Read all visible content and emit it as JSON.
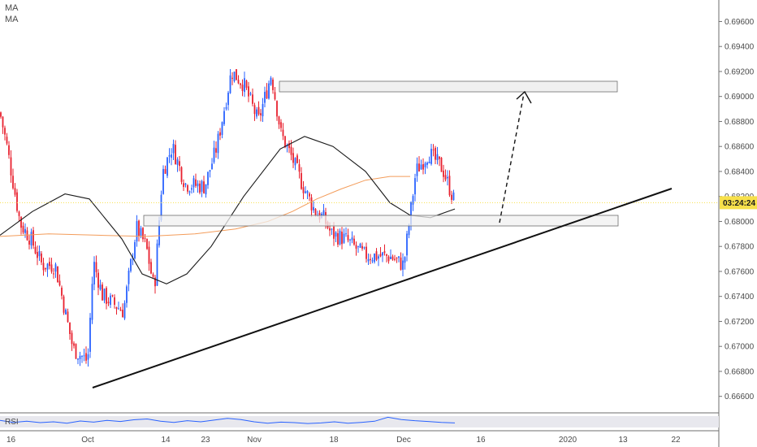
{
  "legend": {
    "ma_label_1": "MA",
    "ma_label_2": "MA"
  },
  "rsi_label": "RSI",
  "current_price_label": "03:24:24",
  "colors": {
    "up": "#2962ff",
    "down": "#e8202e",
    "ma_fast": "#1a1a1a",
    "ma_slow": "#f39c5a",
    "price_line": "#f7e04b",
    "badge": "#f7e04b",
    "rsi": "#2962ff",
    "zone_fill": "#f0f0f0",
    "zone_stroke": "#6e6e6e"
  },
  "chart_data": {
    "type": "candlestick",
    "y_ticks": [
      "0.69600",
      "0.69400",
      "0.69200",
      "0.69000",
      "0.68800",
      "0.68600",
      "0.68400",
      "0.68200",
      "0.68000",
      "0.67800",
      "0.67600",
      "0.67400",
      "0.67200",
      "0.67000",
      "0.66800",
      "0.66600"
    ],
    "x_ticks": [
      "16",
      "Oct",
      "14",
      "23",
      "Nov",
      "18",
      "Dec",
      "16",
      "2020",
      "13",
      "22"
    ],
    "current_price": 0.6815,
    "ylim": [
      0.6652,
      0.6972
    ],
    "anchors": [
      {
        "x": "16",
        "y": 0.6887
      },
      {
        "x": "16",
        "y": 0.6862
      },
      {
        "x": "16",
        "y": 0.6798
      },
      {
        "x": "16",
        "y": 0.6786
      },
      {
        "x": "Oct",
        "y": 0.6765
      },
      {
        "x": "Oct",
        "y": 0.6765
      },
      {
        "x": "Oct",
        "y": 0.6698
      },
      {
        "x": "Oct",
        "y": 0.6688
      },
      {
        "x": "Oct",
        "y": 0.6768
      },
      {
        "x": "Oct",
        "y": 0.6741
      },
      {
        "x": "14",
        "y": 0.6728
      },
      {
        "x": "14",
        "y": 0.6795
      },
      {
        "x": "14",
        "y": 0.678
      },
      {
        "x": "14",
        "y": 0.6745
      },
      {
        "x": "14",
        "y": 0.6839
      },
      {
        "x": "23",
        "y": 0.686
      },
      {
        "x": "23",
        "y": 0.683
      },
      {
        "x": "23",
        "y": 0.6828
      },
      {
        "x": "Nov",
        "y": 0.686
      },
      {
        "x": "Nov",
        "y": 0.692
      },
      {
        "x": "Nov",
        "y": 0.691
      },
      {
        "x": "Nov",
        "y": 0.688
      },
      {
        "x": "Nov",
        "y": 0.6918
      },
      {
        "x": "Nov",
        "y": 0.687
      },
      {
        "x": "Nov",
        "y": 0.685
      },
      {
        "x": "18",
        "y": 0.683
      },
      {
        "x": "18",
        "y": 0.6808
      },
      {
        "x": "18",
        "y": 0.6803
      },
      {
        "x": "18",
        "y": 0.679
      },
      {
        "x": "18",
        "y": 0.6786
      },
      {
        "x": "Dec",
        "y": 0.6773
      },
      {
        "x": "Dec",
        "y": 0.6772
      },
      {
        "x": "Dec",
        "y": 0.6765
      },
      {
        "x": "Dec",
        "y": 0.684
      },
      {
        "x": "Dec",
        "y": 0.6855
      },
      {
        "x": "Dec",
        "y": 0.6842
      },
      {
        "x": "Dec",
        "y": 0.6815
      }
    ],
    "ma_fast": [
      0.6789,
      0.6808,
      0.6822,
      0.6818,
      0.6786,
      0.6758,
      0.675,
      0.6758,
      0.678,
      0.682,
      0.6858,
      0.6868,
      0.686,
      0.684,
      0.6815,
      0.6805,
      0.6803,
      0.681
    ],
    "ma_slow": [
      0.6788,
      0.679,
      0.6789,
      0.6788,
      0.679,
      0.6794,
      0.68,
      0.6808,
      0.6818,
      0.6826,
      0.6833,
      0.6836,
      0.6836
    ]
  },
  "rsi_series": [
    55,
    48,
    52,
    47,
    50,
    45,
    53,
    49,
    55,
    51,
    57,
    60,
    52,
    48,
    54,
    50,
    56,
    62,
    58,
    50,
    45,
    49,
    47,
    44,
    46,
    50,
    45,
    48,
    52,
    66,
    58,
    54,
    51,
    48,
    46
  ]
}
